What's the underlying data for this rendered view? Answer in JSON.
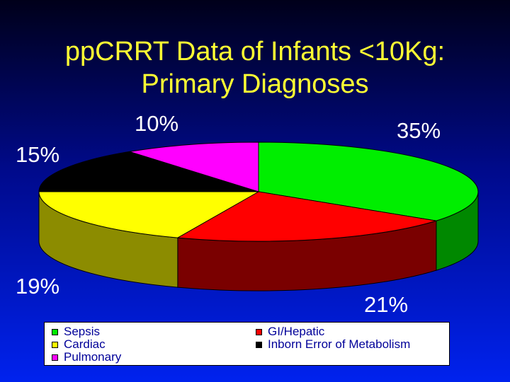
{
  "title_line1": "ppCRRT Data of Infants <10Kg:",
  "title_line2": "Primary Diagnoses",
  "chart_data": {
    "type": "pie",
    "title": "ppCRRT Data of Infants <10Kg: Primary Diagnoses",
    "slices": [
      {
        "label": "Sepsis",
        "value": 35,
        "text": "35%",
        "color": "#00ee00",
        "side": "#008800"
      },
      {
        "label": "GI/Hepatic",
        "value": 21,
        "text": "21%",
        "color": "#ff0000",
        "side": "#7a0000"
      },
      {
        "label": "Cardiac",
        "value": 19,
        "text": "19%",
        "color": "#ffff00",
        "side": "#8c8c00"
      },
      {
        "label": "Inborn Error of Metabolism",
        "value": 15,
        "text": "15%",
        "color": "#000000",
        "side": "#000000"
      },
      {
        "label": "Pulmonary",
        "value": 10,
        "text": "10%",
        "color": "#ff00ff",
        "side": "#880088"
      }
    ]
  },
  "legend": [
    {
      "label": "Sepsis",
      "color": "#00ee00"
    },
    {
      "label": "GI/Hepatic",
      "color": "#ff0000"
    },
    {
      "label": "Cardiac",
      "color": "#ffff00"
    },
    {
      "label": "Inborn Error of Metabolism",
      "color": "#000000"
    },
    {
      "label": "Pulmonary",
      "color": "#ff00ff"
    }
  ]
}
